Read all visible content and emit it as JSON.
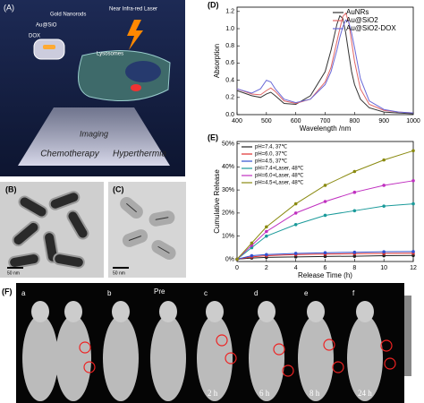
{
  "panels": {
    "A": {
      "label": "(A)",
      "gold_nanorods": "Gold Nanorods",
      "au_sio": "Au@SiO",
      "dox": "DOX",
      "laser": "Near Infra-red Laser",
      "lysosomes": "Lysosomes",
      "imaging": "Imaging",
      "chemotherapy": "Chemotherapy",
      "hyperthermia": "Hyperthermia"
    },
    "B": {
      "label": "(B)",
      "scale": "50 nm"
    },
    "C": {
      "label": "(C)",
      "scale": "50 nm"
    },
    "F": {
      "label": "(F)",
      "mice": [
        "a",
        "b",
        "Pre",
        "c",
        "d",
        "e",
        "f"
      ],
      "times": [
        "2 h",
        "6 h",
        "8 h",
        "24 h"
      ]
    }
  },
  "chart_data": [
    {
      "type": "line",
      "panel_label": "(D)",
      "xlabel": "Wavelength /nm",
      "ylabel": "Absorption",
      "legend": "upper right",
      "x": [
        400,
        450,
        480,
        500,
        515,
        530,
        560,
        600,
        650,
        700,
        720,
        740,
        750,
        760,
        770,
        780,
        790,
        800,
        820,
        850,
        900,
        950,
        1000
      ],
      "xlim": [
        400,
        1000
      ],
      "xticks": [
        400,
        500,
        600,
        700,
        800,
        900,
        1000
      ],
      "ylim": [
        0,
        1.25
      ],
      "yticks": [
        {
          "value": 0,
          "label": "0.0"
        },
        0.2,
        0.4,
        0.6,
        0.8,
        {
          "value": 1,
          "label": "1.0"
        },
        1.2
      ],
      "series": [
        {
          "name": "AuNRs",
          "color": "#333333",
          "values": [
            0.28,
            0.22,
            0.2,
            0.24,
            0.26,
            0.22,
            0.13,
            0.12,
            0.22,
            0.5,
            0.75,
            1.05,
            1.15,
            1.12,
            0.95,
            0.72,
            0.5,
            0.35,
            0.18,
            0.08,
            0.03,
            0.02,
            0.01
          ]
        },
        {
          "name": "Au@SiO2",
          "color": "#e06666",
          "values": [
            0.3,
            0.24,
            0.23,
            0.28,
            0.31,
            0.27,
            0.16,
            0.13,
            0.18,
            0.38,
            0.55,
            0.85,
            1.0,
            1.14,
            1.18,
            1.08,
            0.85,
            0.62,
            0.3,
            0.12,
            0.05,
            0.03,
            0.02
          ]
        },
        {
          "name": "Au@SiO2-DOX",
          "color": "#6a6ad8",
          "values": [
            0.3,
            0.25,
            0.3,
            0.4,
            0.38,
            0.3,
            0.18,
            0.14,
            0.18,
            0.35,
            0.5,
            0.75,
            0.9,
            1.02,
            1.1,
            1.08,
            0.95,
            0.78,
            0.42,
            0.16,
            0.06,
            0.03,
            0.02
          ]
        }
      ]
    },
    {
      "type": "line",
      "panel_label": "(E)",
      "xlabel": "Release Time (h)",
      "ylabel": "Cumulative Release",
      "legend": "upper left",
      "x": [
        0,
        1,
        2,
        4,
        6,
        8,
        10,
        12
      ],
      "xlim": [
        0,
        12
      ],
      "xticks": [
        0,
        2,
        4,
        6,
        8,
        10,
        12
      ],
      "ylim": [
        -1,
        51
      ],
      "yticks": [
        {
          "value": 0,
          "label": "0%"
        },
        {
          "value": 10,
          "label": "10%"
        },
        {
          "value": 20,
          "label": "20%"
        },
        {
          "value": 30,
          "label": "30%"
        },
        {
          "value": 40,
          "label": "40%"
        },
        {
          "value": 50,
          "label": "50%"
        }
      ],
      "series": [
        {
          "name": "pH=7.4, 37℃",
          "color": "#222222",
          "values": [
            0,
            0.5,
            0.8,
            1,
            1.2,
            1.3,
            1.5,
            1.6
          ]
        },
        {
          "name": "pH=6.0, 37℃",
          "color": "#e03030",
          "values": [
            0,
            1,
            1.5,
            2,
            2.2,
            2.4,
            2.5,
            2.6
          ]
        },
        {
          "name": "pH=4.5, 37℃",
          "color": "#3050d0",
          "values": [
            0,
            1.5,
            2,
            2.5,
            2.8,
            3,
            3.2,
            3.3
          ]
        },
        {
          "name": "pH=7.4+Laser, 48℃",
          "color": "#1a9a9a",
          "values": [
            0,
            5,
            10,
            15,
            19,
            21,
            23,
            24
          ]
        },
        {
          "name": "pH=6.0+Laser, 48℃",
          "color": "#c030c0",
          "values": [
            0,
            6,
            12,
            20,
            25,
            29,
            32,
            34
          ]
        },
        {
          "name": "pH=4.5+Laser, 48℃",
          "color": "#8a8a10",
          "values": [
            0,
            7,
            14,
            24,
            32,
            38,
            43,
            47
          ]
        }
      ]
    }
  ]
}
